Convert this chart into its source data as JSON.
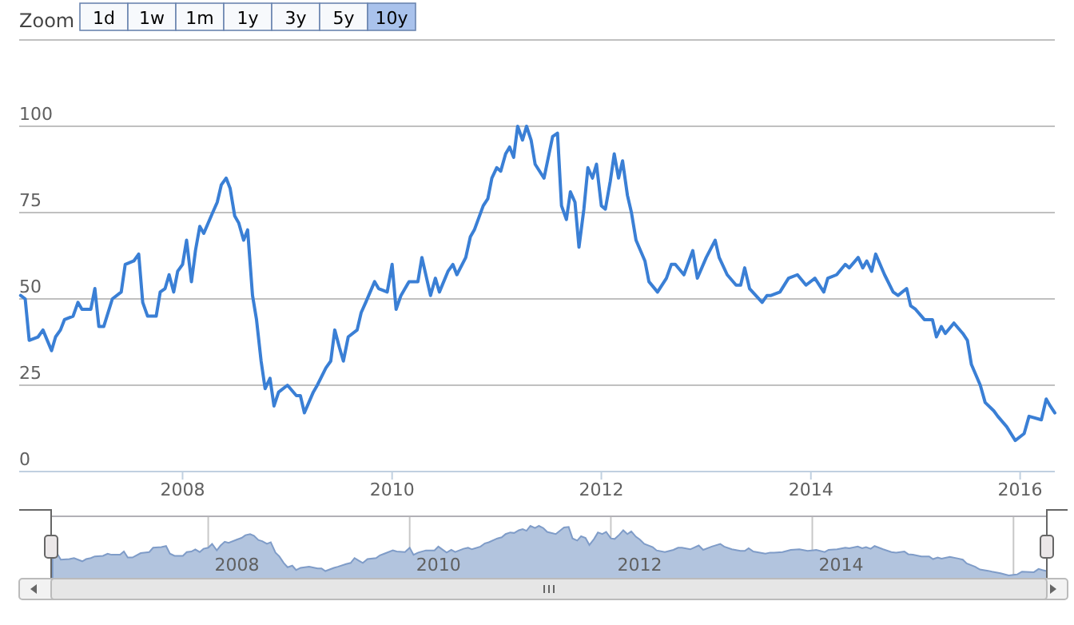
{
  "chart_data": {
    "type": "line",
    "annotations": [
      "Zoom",
      "1d",
      "1w",
      "1m",
      "1y",
      "3y",
      "5y",
      "10y"
    ],
    "x": [
      "2006-06-15",
      "2006-07-01",
      "2006-07-15",
      "2006-08-15",
      "2006-09-01",
      "2006-10-01",
      "2006-10-15",
      "2006-11-01",
      "2006-11-15",
      "2006-12-15",
      "2007-01-01",
      "2007-01-15",
      "2007-02-15",
      "2007-03-01",
      "2007-03-15",
      "2007-04-01",
      "2007-05-01",
      "2007-06-01",
      "2007-06-15",
      "2007-07-15",
      "2007-08-01",
      "2007-08-15",
      "2007-09-01",
      "2007-10-01",
      "2007-10-15",
      "2007-11-01",
      "2007-11-15",
      "2007-12-01",
      "2007-12-15",
      "2008-01-01",
      "2008-01-15",
      "2008-02-01",
      "2008-02-15",
      "2008-03-01",
      "2008-03-15",
      "2008-04-15",
      "2008-05-01",
      "2008-05-15",
      "2008-06-01",
      "2008-06-15",
      "2008-07-01",
      "2008-07-15",
      "2008-08-01",
      "2008-08-15",
      "2008-09-01",
      "2008-09-15",
      "2008-10-01",
      "2008-10-15",
      "2008-11-01",
      "2008-11-15",
      "2008-12-01",
      "2009-01-01",
      "2009-02-01",
      "2009-02-15",
      "2009-03-01",
      "2009-04-01",
      "2009-04-15",
      "2009-05-15",
      "2009-06-01",
      "2009-06-15",
      "2009-07-01",
      "2009-07-15",
      "2009-08-01",
      "2009-09-01",
      "2009-09-15",
      "2009-10-01",
      "2009-11-01",
      "2009-11-15",
      "2009-12-15",
      "2010-01-01",
      "2010-01-15",
      "2010-02-01",
      "2010-03-01",
      "2010-04-01",
      "2010-04-15",
      "2010-05-15",
      "2010-06-01",
      "2010-06-15",
      "2010-07-15",
      "2010-08-01",
      "2010-08-15",
      "2010-09-15",
      "2010-10-01",
      "2010-10-15",
      "2010-11-15",
      "2010-12-01",
      "2010-12-15",
      "2011-01-01",
      "2011-01-15",
      "2011-02-01",
      "2011-02-15",
      "2011-03-01",
      "2011-03-15",
      "2011-04-01",
      "2011-04-15",
      "2011-05-01",
      "2011-05-15",
      "2011-06-15",
      "2011-07-15",
      "2011-08-01",
      "2011-08-15",
      "2011-09-01",
      "2011-09-15",
      "2011-10-01",
      "2011-10-15",
      "2011-11-01",
      "2011-11-15",
      "2011-12-01",
      "2011-12-15",
      "2012-01-01",
      "2012-01-15",
      "2012-02-01",
      "2012-02-15",
      "2012-03-01",
      "2012-03-15",
      "2012-04-01",
      "2012-04-15",
      "2012-05-01",
      "2012-06-01",
      "2012-06-15",
      "2012-07-15",
      "2012-08-15",
      "2012-09-01",
      "2012-09-15",
      "2012-10-15",
      "2012-11-15",
      "2012-12-01",
      "2013-01-01",
      "2013-02-01",
      "2013-02-15",
      "2013-03-15",
      "2013-04-15",
      "2013-05-01",
      "2013-05-15",
      "2013-06-01",
      "2013-07-15",
      "2013-08-01",
      "2013-08-15",
      "2013-09-15",
      "2013-10-15",
      "2013-11-15",
      "2013-12-15",
      "2014-01-15",
      "2014-02-15",
      "2014-03-01",
      "2014-04-01",
      "2014-05-01",
      "2014-05-15",
      "2014-06-15",
      "2014-07-01",
      "2014-07-15",
      "2014-08-01",
      "2014-08-15",
      "2014-09-15",
      "2014-10-15",
      "2014-11-01",
      "2014-12-01",
      "2014-12-15",
      "2015-01-01",
      "2015-02-01",
      "2015-03-01",
      "2015-03-15",
      "2015-04-01",
      "2015-04-15",
      "2015-05-15",
      "2015-06-15",
      "2015-07-01",
      "2015-07-15",
      "2015-08-15",
      "2015-09-01",
      "2015-10-01",
      "2015-10-15",
      "2015-11-15",
      "2015-12-15",
      "2016-01-15",
      "2016-02-01",
      "2016-03-15",
      "2016-04-01",
      "2016-04-15",
      "2016-05-01"
    ],
    "series": [
      {
        "color": "#3a7fd5",
        "values": [
          51,
          50,
          38,
          39,
          41,
          35,
          39,
          41,
          44,
          45,
          49,
          47,
          47,
          53,
          42,
          42,
          50,
          52,
          60,
          61,
          63,
          49,
          45,
          45,
          52,
          53,
          57,
          52,
          58,
          60,
          67,
          55,
          64,
          71,
          69,
          75,
          78,
          83,
          85,
          82,
          74,
          72,
          67,
          70,
          51,
          44,
          32,
          24,
          27,
          19,
          23,
          25,
          22,
          22,
          17,
          23,
          25,
          30,
          32,
          41,
          36,
          32,
          39,
          41,
          46,
          49,
          55,
          53,
          52,
          60,
          47,
          51,
          55,
          55,
          62,
          51,
          56,
          52,
          58,
          60,
          57,
          62,
          68,
          70,
          77,
          79,
          85,
          88,
          87,
          92,
          94,
          91,
          100,
          96,
          100,
          96,
          89,
          85,
          97,
          98,
          77,
          73,
          81,
          78,
          65,
          76,
          88,
          85,
          89,
          77,
          76,
          84,
          92,
          85,
          90,
          80,
          75,
          67,
          61,
          55,
          52,
          56,
          60,
          60,
          57,
          64,
          56,
          62,
          67,
          62,
          57,
          54,
          54,
          59,
          53,
          49,
          51,
          51,
          52,
          56,
          57,
          54,
          56,
          52,
          56,
          57,
          60,
          59,
          62,
          59,
          61,
          58,
          63,
          57,
          52,
          51,
          53,
          48,
          47,
          44,
          44,
          39,
          42,
          40,
          43,
          40,
          38,
          31,
          25,
          20,
          17.6,
          16,
          13,
          9,
          11,
          16,
          15,
          21,
          19,
          17
        ]
      }
    ],
    "xlim": [
      "2006-06-10",
      "2016-05-01"
    ],
    "xticks": [
      {
        "value": "2008-01-01",
        "label": "2008"
      },
      {
        "value": "2010-01-01",
        "label": "2010"
      },
      {
        "value": "2012-01-01",
        "label": "2012"
      },
      {
        "value": "2014-01-01",
        "label": "2014"
      },
      {
        "value": "2016-01-01",
        "label": "2016"
      }
    ],
    "ylim": [
      0,
      125
    ],
    "yticks": [
      0,
      25,
      50,
      75,
      100,
      {
        "value": 125,
        "label": null
      }
    ],
    "grid": "y"
  }
}
